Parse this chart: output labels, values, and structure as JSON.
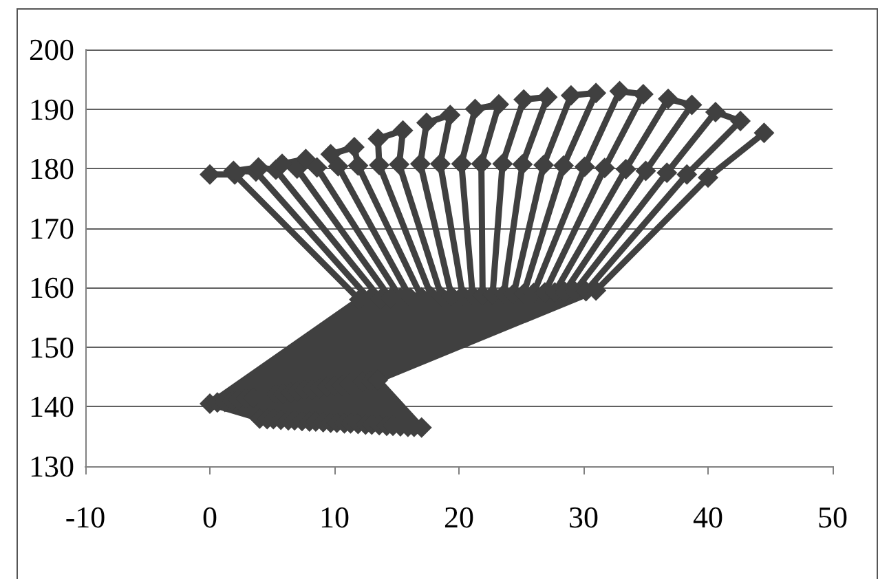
{
  "chart_data": {
    "type": "line",
    "marker": "diamond",
    "grid": "y",
    "xlim": [
      -10,
      50
    ],
    "xticks": [
      -10,
      0,
      10,
      20,
      30,
      40,
      50
    ],
    "ylim": [
      130,
      200
    ],
    "yticks": [
      130,
      140,
      150,
      160,
      170,
      180,
      190,
      200
    ],
    "series": [
      {
        "color": "#404040",
        "x": [
          0,
          2,
          12,
          0,
          4,
          4.6,
          0.6,
          12.8,
          3.7,
          1.9,
          3.9,
          5.3,
          13.7,
          1.2,
          5.1,
          5.7,
          1.8,
          14.5,
          7,
          5.8,
          7.7,
          8.6,
          15.3,
          2.3,
          6.3,
          6.8,
          2.9,
          16.1,
          10.3,
          9.7,
          11.6,
          11.9,
          17,
          3.5,
          7.4,
          8,
          4.1,
          17.8,
          13.6,
          13.5,
          15.5,
          15.2,
          18.6,
          4.7,
          8.5,
          9.1,
          5.3,
          19.4,
          16.9,
          17.4,
          19.3,
          18.5,
          20.3,
          5.9,
          9.7,
          10.2,
          6.5,
          21.1,
          20.2,
          21.3,
          23.2,
          21.8,
          21.9,
          7,
          10.8,
          11.3,
          7.6,
          22.7,
          23.5,
          25.2,
          27.1,
          25.1,
          23.6,
          8.2,
          11.9,
          12.5,
          8.8,
          24.4,
          26.8,
          29,
          31,
          28.4,
          25.2,
          9.4,
          13,
          13.6,
          10,
          26,
          30.1,
          32.9,
          34.8,
          31.7,
          26.9,
          10.6,
          14.2,
          14.7,
          11.2,
          27.7,
          33.4,
          36.8,
          38.7,
          35,
          28.5,
          11.7,
          15.3,
          15.9,
          12.3,
          29.3,
          36.7,
          40.6,
          42.6,
          38.3,
          30.2,
          12.9,
          16.4,
          17,
          13.5,
          31,
          40,
          44.5
        ],
        "values": [
          179,
          179,
          158,
          140.5,
          138,
          137.9,
          140.7,
          158.1,
          179.5,
          179.6,
          180.2,
          179.8,
          158.1,
          140.8,
          137.9,
          137.8,
          141,
          158.2,
          180,
          180.8,
          181.6,
          180.2,
          158.3,
          141.2,
          137.7,
          137.7,
          141.4,
          158.3,
          180.4,
          182.4,
          183.6,
          180.5,
          158.4,
          141.5,
          137.6,
          137.5,
          141.7,
          158.5,
          180.6,
          185,
          186.4,
          180.7,
          158.5,
          141.9,
          137.5,
          137.4,
          142.1,
          158.6,
          180.8,
          187.7,
          189,
          180.8,
          158.7,
          142.2,
          137.3,
          137.3,
          142.4,
          158.7,
          180.8,
          190,
          190.8,
          180.8,
          158.8,
          142.6,
          137.2,
          137.2,
          142.8,
          158.8,
          180.8,
          191.6,
          192,
          180.7,
          158.9,
          142.9,
          137.1,
          137,
          143.1,
          159,
          180.6,
          192.3,
          192.7,
          180.5,
          159,
          143.3,
          137,
          136.9,
          143.5,
          159.1,
          180.3,
          193,
          192.5,
          180.1,
          159.2,
          143.6,
          136.8,
          136.8,
          143.8,
          159.2,
          179.9,
          191.7,
          190.7,
          179.6,
          159.3,
          144,
          136.7,
          136.6,
          144.2,
          159.4,
          179.3,
          189.5,
          188,
          179,
          159.4,
          144.3,
          136.6,
          136.5,
          144.5,
          159.5,
          178.5,
          186
        ]
      }
    ]
  }
}
